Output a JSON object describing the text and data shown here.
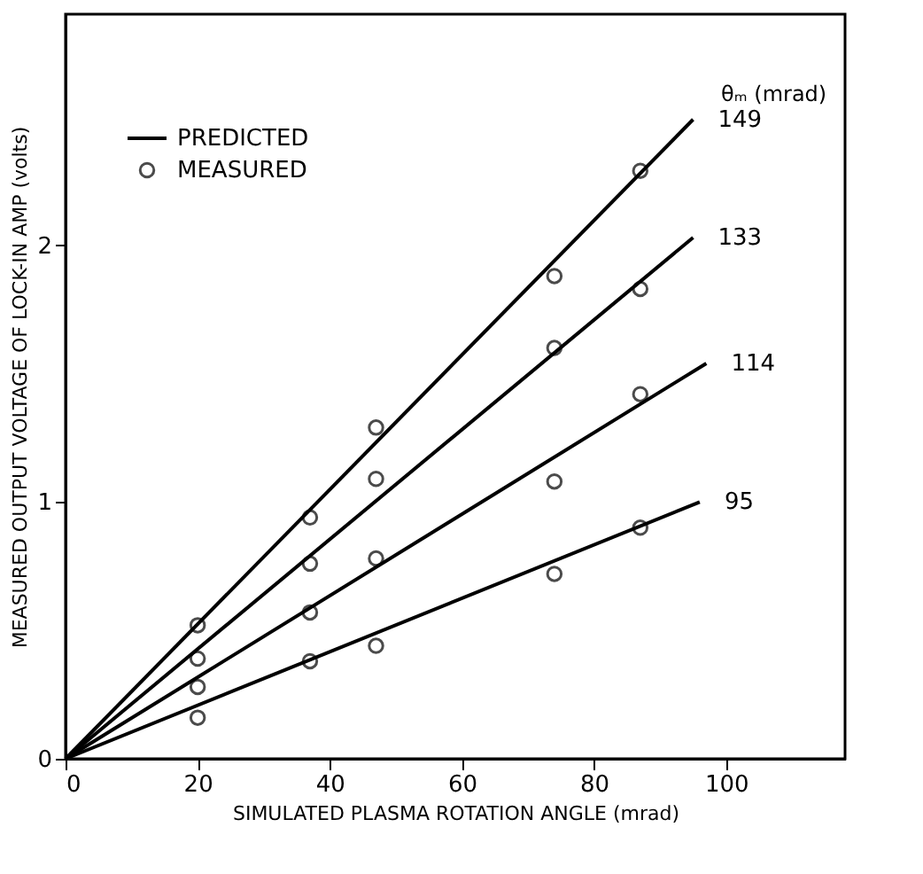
{
  "chart_data": {
    "type": "line",
    "xlabel": "SIMULATED PLASMA ROTATION ANGLE (mrad)",
    "ylabel": "MEASURED OUTPUT VOLTAGE OF LOCK-IN AMP (volts)",
    "xlim": [
      0,
      118
    ],
    "xticks": [
      0,
      20,
      40,
      60,
      80,
      100
    ],
    "ylim": [
      0,
      2.9
    ],
    "yticks": [
      0,
      1,
      2
    ],
    "grid": false,
    "legend": "top left",
    "line_style": "solid",
    "series": [
      {
        "name": "149",
        "color": "#000000",
        "x": [
          0,
          95
        ],
        "values": [
          0,
          2.49
        ]
      },
      {
        "name": "133",
        "color": "#000000",
        "x": [
          0,
          95
        ],
        "values": [
          0,
          2.03
        ]
      },
      {
        "name": "114",
        "color": "#000000",
        "x": [
          0,
          97
        ],
        "values": [
          0,
          1.54
        ]
      },
      {
        "name": "95",
        "color": "#000000",
        "x": [
          0,
          96
        ],
        "values": [
          0,
          1.0
        ]
      },
      {
        "name": "MEASURED",
        "type": "scatter",
        "marker": "circle",
        "color": "#000000",
        "x": [
          20,
          37,
          47,
          74,
          87,
          20,
          37,
          47,
          74,
          87,
          20,
          37,
          47,
          74,
          87,
          20,
          37,
          47,
          74,
          87
        ],
        "values": [
          0.52,
          0.94,
          1.29,
          1.88,
          2.29,
          0.39,
          0.76,
          1.09,
          1.6,
          1.83,
          0.28,
          0.57,
          0.78,
          1.08,
          1.42,
          0.16,
          0.38,
          0.44,
          0.72,
          0.9
        ]
      }
    ],
    "annotations": [
      "θₘ (mrad)",
      "PREDICTED"
    ]
  }
}
